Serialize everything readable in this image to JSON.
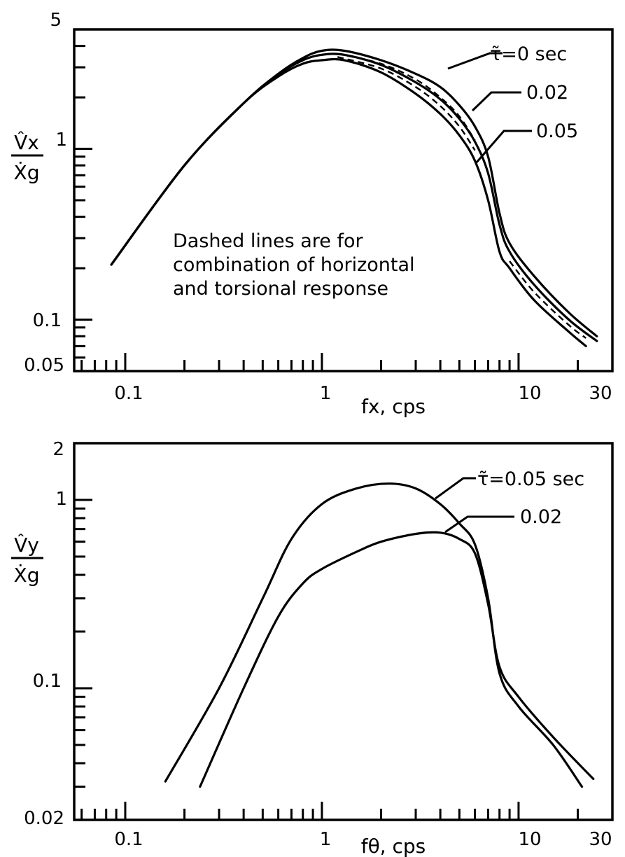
{
  "chart_data": [
    {
      "type": "line",
      "xscale": "log",
      "yscale": "log",
      "xlim": [
        0.055,
        30
      ],
      "ylim": [
        0.05,
        5
      ],
      "x_tick_labels": [
        "0.1",
        "1",
        "10",
        "30"
      ],
      "y_tick_labels": [
        "5",
        "1",
        "0.1",
        "0.05"
      ],
      "ylabel_top": "V̂x",
      "ylabel_bottom": "Ẋg",
      "xlabel": "fx, cps",
      "annotation_lines": [
        "Dashed lines are for",
        "combination of horizontal",
        "and torsional response"
      ],
      "series": [
        {
          "name": "τ̃=0 sec",
          "points": [
            [
              0.085,
              0.21
            ],
            [
              0.2,
              0.8
            ],
            [
              0.4,
              1.85
            ],
            [
              0.6,
              2.75
            ],
            [
              0.8,
              3.4
            ],
            [
              1.0,
              3.75
            ],
            [
              1.3,
              3.75
            ],
            [
              2.0,
              3.3
            ],
            [
              3.0,
              2.75
            ],
            [
              4.0,
              2.3
            ],
            [
              5.0,
              1.8
            ],
            [
              6.0,
              1.35
            ],
            [
              7.0,
              0.9
            ],
            [
              8.0,
              0.42
            ],
            [
              9.0,
              0.28
            ],
            [
              12.0,
              0.18
            ],
            [
              18.0,
              0.11
            ],
            [
              25.0,
              0.08
            ]
          ]
        },
        {
          "name": "0.02",
          "points": [
            [
              0.085,
              0.21
            ],
            [
              0.2,
              0.8
            ],
            [
              0.4,
              1.85
            ],
            [
              0.6,
              2.72
            ],
            [
              0.8,
              3.3
            ],
            [
              1.0,
              3.55
            ],
            [
              1.3,
              3.55
            ],
            [
              2.0,
              3.1
            ],
            [
              3.0,
              2.45
            ],
            [
              4.0,
              1.95
            ],
            [
              5.0,
              1.5
            ],
            [
              6.0,
              1.1
            ],
            [
              7.0,
              0.72
            ],
            [
              8.0,
              0.36
            ],
            [
              9.0,
              0.25
            ],
            [
              12.0,
              0.16
            ],
            [
              18.0,
              0.1
            ],
            [
              25.0,
              0.075
            ]
          ]
        },
        {
          "name": "0.05",
          "points": [
            [
              0.085,
              0.21
            ],
            [
              0.2,
              0.8
            ],
            [
              0.4,
              1.85
            ],
            [
              0.6,
              2.65
            ],
            [
              0.8,
              3.15
            ],
            [
              1.0,
              3.3
            ],
            [
              1.3,
              3.3
            ],
            [
              2.0,
              2.8
            ],
            [
              3.0,
              2.1
            ],
            [
              4.0,
              1.6
            ],
            [
              5.0,
              1.2
            ],
            [
              6.0,
              0.85
            ],
            [
              7.0,
              0.5
            ],
            [
              8.0,
              0.25
            ],
            [
              9.0,
              0.2
            ],
            [
              12.0,
              0.13
            ],
            [
              18.0,
              0.085
            ],
            [
              22.0,
              0.07
            ]
          ]
        }
      ],
      "dashed_series": [
        {
          "points": [
            [
              1.2,
              3.6
            ],
            [
              2.0,
              3.15
            ],
            [
              3.0,
              2.55
            ],
            [
              4.0,
              2.0
            ],
            [
              5.0,
              1.55
            ],
            [
              6.0,
              1.12
            ]
          ]
        },
        {
          "points": [
            [
              1.2,
              3.45
            ],
            [
              2.0,
              2.95
            ],
            [
              3.0,
              2.3
            ],
            [
              4.0,
              1.78
            ],
            [
              5.0,
              1.35
            ],
            [
              6.0,
              0.98
            ]
          ]
        },
        {
          "points": [
            [
              9.0,
              0.22
            ],
            [
              12.0,
              0.145
            ],
            [
              18.0,
              0.093
            ],
            [
              22.0,
              0.078
            ]
          ]
        }
      ]
    },
    {
      "type": "line",
      "xscale": "log",
      "yscale": "log",
      "xlim": [
        0.055,
        30
      ],
      "ylim": [
        0.02,
        2
      ],
      "x_tick_labels": [
        "0.1",
        "1",
        "10",
        "30"
      ],
      "y_tick_labels": [
        "2",
        "1",
        "0.1",
        "0.02"
      ],
      "ylabel_top": "V̂y",
      "ylabel_bottom": "Ẋg",
      "xlabel": "fθ, cps",
      "series": [
        {
          "name": "τ̃=0.05 sec",
          "points": [
            [
              0.16,
              0.032
            ],
            [
              0.3,
              0.1
            ],
            [
              0.5,
              0.3
            ],
            [
              0.7,
              0.62
            ],
            [
              1.0,
              0.95
            ],
            [
              1.5,
              1.15
            ],
            [
              2.2,
              1.22
            ],
            [
              3.0,
              1.15
            ],
            [
              4.0,
              0.95
            ],
            [
              5.0,
              0.75
            ],
            [
              6.0,
              0.58
            ],
            [
              7.0,
              0.3
            ],
            [
              8.0,
              0.12
            ],
            [
              10.0,
              0.08
            ],
            [
              15.0,
              0.05
            ],
            [
              21.0,
              0.03
            ]
          ]
        },
        {
          "name": "0.02",
          "points": [
            [
              0.24,
              0.03
            ],
            [
              0.4,
              0.1
            ],
            [
              0.6,
              0.24
            ],
            [
              0.8,
              0.36
            ],
            [
              1.0,
              0.43
            ],
            [
              1.5,
              0.53
            ],
            [
              2.0,
              0.6
            ],
            [
              3.0,
              0.66
            ],
            [
              4.0,
              0.67
            ],
            [
              5.0,
              0.62
            ],
            [
              6.0,
              0.52
            ],
            [
              7.0,
              0.28
            ],
            [
              8.0,
              0.13
            ],
            [
              10.0,
              0.09
            ],
            [
              15.0,
              0.055
            ],
            [
              24.0,
              0.033
            ]
          ]
        }
      ]
    }
  ]
}
